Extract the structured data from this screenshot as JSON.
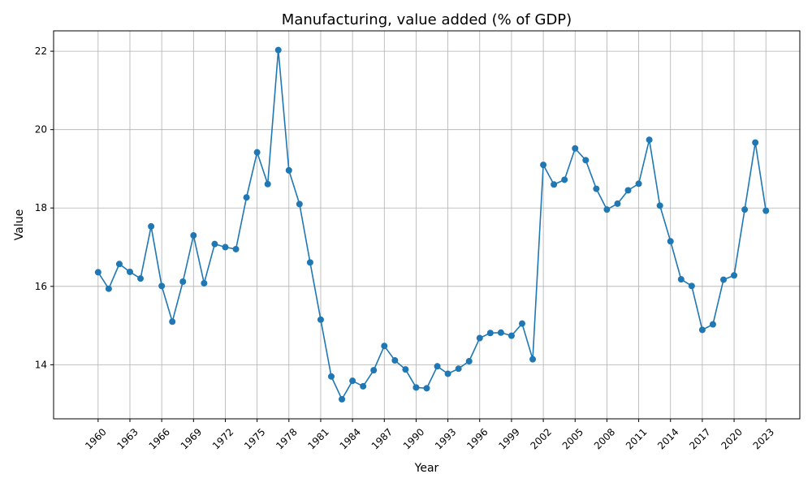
{
  "chart_data": {
    "type": "line",
    "title": "Manufacturing, value added (% of GDP)",
    "xlabel": "Year",
    "ylabel": "Value",
    "xlim": [
      1955.8,
      2026.2
    ],
    "ylim": [
      12.62,
      22.52
    ],
    "grid": true,
    "legend": "none",
    "x_ticks": [
      1960,
      1963,
      1966,
      1969,
      1972,
      1975,
      1978,
      1981,
      1984,
      1987,
      1990,
      1993,
      1996,
      1999,
      2002,
      2005,
      2008,
      2011,
      2014,
      2017,
      2020,
      2023
    ],
    "y_ticks": [
      14,
      16,
      18,
      20,
      22
    ],
    "x": [
      1960,
      1961,
      1962,
      1963,
      1964,
      1965,
      1966,
      1967,
      1968,
      1969,
      1970,
      1971,
      1972,
      1973,
      1974,
      1975,
      1976,
      1977,
      1978,
      1979,
      1980,
      1981,
      1982,
      1983,
      1984,
      1985,
      1986,
      1987,
      1988,
      1989,
      1990,
      1991,
      1992,
      1993,
      1994,
      1995,
      1996,
      1997,
      1998,
      1999,
      2000,
      2001,
      2002,
      2003,
      2004,
      2005,
      2006,
      2007,
      2008,
      2009,
      2010,
      2011,
      2012,
      2013,
      2014,
      2015,
      2016,
      2017,
      2018,
      2019,
      2020,
      2021,
      2022,
      2023
    ],
    "series": [
      {
        "color": "#1f77b4",
        "values": [
          16.36,
          15.94,
          16.57,
          16.37,
          16.2,
          17.53,
          16.01,
          15.1,
          16.12,
          17.3,
          16.08,
          17.08,
          17.0,
          16.95,
          18.27,
          19.42,
          18.61,
          22.03,
          18.96,
          18.1,
          16.61,
          15.15,
          13.7,
          13.12,
          13.59,
          13.45,
          13.86,
          14.48,
          14.11,
          13.88,
          13.42,
          13.4,
          13.96,
          13.77,
          13.9,
          14.09,
          14.68,
          14.81,
          14.82,
          14.74,
          15.05,
          14.14,
          19.1,
          18.6,
          18.72,
          19.52,
          19.22,
          18.49,
          17.96,
          18.11,
          18.45,
          18.62,
          19.74,
          18.06,
          17.15,
          16.18,
          16.01,
          14.89,
          15.03,
          16.17,
          16.28,
          17.96,
          19.67,
          17.93
        ]
      }
    ]
  }
}
